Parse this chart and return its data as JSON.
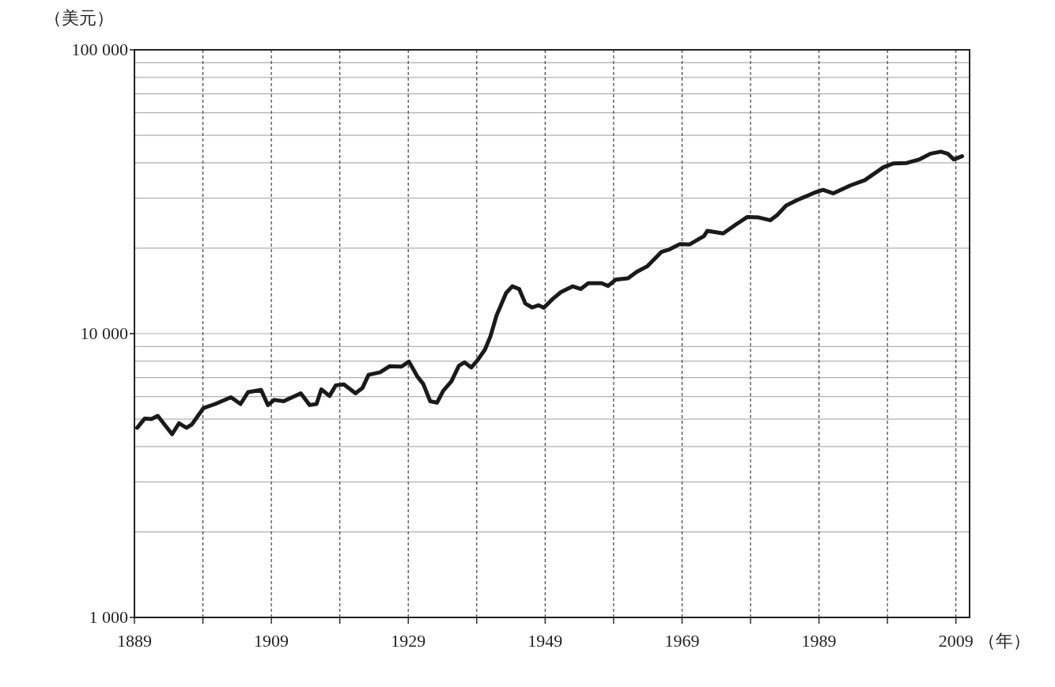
{
  "chart_data": {
    "type": "line",
    "xlabel": "（年）",
    "ylabel": "（美元）",
    "log": "y",
    "grid": true,
    "line_style": "solid",
    "marker": "none",
    "xlim": [
      1889,
      2011
    ],
    "ylim": [
      1000,
      100000
    ],
    "xticks": [
      1889,
      {
        "value": 1899,
        "label": null
      },
      1909,
      {
        "value": 1919,
        "label": null
      },
      1929,
      {
        "value": 1939,
        "label": null
      },
      1949,
      {
        "value": 1959,
        "label": null
      },
      1969,
      {
        "value": 1979,
        "label": null
      },
      1989,
      {
        "value": 1999,
        "label": null
      },
      2009
    ],
    "yticks": [
      {
        "value": 1000,
        "label": "1 000"
      },
      {
        "value": 2000,
        "label": null
      },
      {
        "value": 3000,
        "label": null
      },
      {
        "value": 4000,
        "label": null
      },
      {
        "value": 5000,
        "label": null
      },
      {
        "value": 6000,
        "label": null
      },
      {
        "value": 7000,
        "label": null
      },
      {
        "value": 8000,
        "label": null
      },
      {
        "value": 9000,
        "label": null
      },
      {
        "value": 10000,
        "label": "10 000"
      },
      {
        "value": 20000,
        "label": null
      },
      {
        "value": 30000,
        "label": null
      },
      {
        "value": 40000,
        "label": null
      },
      {
        "value": 50000,
        "label": null
      },
      {
        "value": 60000,
        "label": null
      },
      {
        "value": 70000,
        "label": null
      },
      {
        "value": 80000,
        "label": null
      },
      {
        "value": 90000,
        "label": null
      },
      {
        "value": 100000,
        "label": "100 000"
      }
    ],
    "series": [
      {
        "color": "#1a1a1a",
        "x": [
          1889.4,
          1890.5,
          1891.5,
          1892.4,
          1894.5,
          1895.5,
          1896.6,
          1897.4,
          1899.1,
          1900.8,
          1903.1,
          1904.5,
          1905.6,
          1907.5,
          1908.5,
          1909.4,
          1910.8,
          1913.3,
          1914.6,
          1915.6,
          1916.3,
          1917.5,
          1918.4,
          1919.6,
          1921.3,
          1922.3,
          1923.2,
          1924.9,
          1926.3,
          1928,
          1929.1,
          1930.3,
          1931.2,
          1932.2,
          1933.2,
          1934.1,
          1935.3,
          1936.4,
          1937.2,
          1938.2,
          1939.1,
          1940.2,
          1941,
          1941.9,
          1943.3,
          1944.2,
          1945.2,
          1946.1,
          1947.1,
          1948,
          1948.8,
          1950.1,
          1951.3,
          1953,
          1954.2,
          1955.3,
          1957.2,
          1958.2,
          1959.3,
          1961.1,
          1962.4,
          1963.9,
          1966,
          1967.2,
          1968.7,
          1970.1,
          1971.2,
          1972.2,
          1972.7,
          1975,
          1976.9,
          1978.5,
          1980.2,
          1981.9,
          1982.9,
          1984.2,
          1985.7,
          1988.4,
          1989.6,
          1991.1,
          1993.6,
          1995.7,
          1998.4,
          1999.9,
          2001.8,
          2003.7,
          2005.3,
          2006.8,
          2007.8,
          2008.7,
          2009.9
        ],
        "values": [
          4660,
          5020,
          5000,
          5130,
          4420,
          4830,
          4660,
          4790,
          5470,
          5650,
          5970,
          5650,
          6220,
          6330,
          5600,
          5840,
          5780,
          6160,
          5600,
          5650,
          6360,
          6030,
          6570,
          6620,
          6160,
          6430,
          7160,
          7310,
          7680,
          7650,
          7970,
          7080,
          6640,
          5780,
          5710,
          6290,
          6790,
          7710,
          7920,
          7600,
          8050,
          8780,
          9770,
          11590,
          13910,
          14680,
          14360,
          12770,
          12360,
          12590,
          12330,
          13250,
          14000,
          14680,
          14360,
          15060,
          15060,
          14730,
          15490,
          15660,
          16520,
          17260,
          19410,
          19820,
          20690,
          20620,
          21370,
          22070,
          23030,
          22540,
          24270,
          25740,
          25660,
          25090,
          26180,
          28250,
          29460,
          31420,
          32090,
          31200,
          33290,
          34740,
          38540,
          39790,
          39910,
          41120,
          43050,
          43760,
          43050,
          41100,
          42160
        ]
      }
    ]
  }
}
